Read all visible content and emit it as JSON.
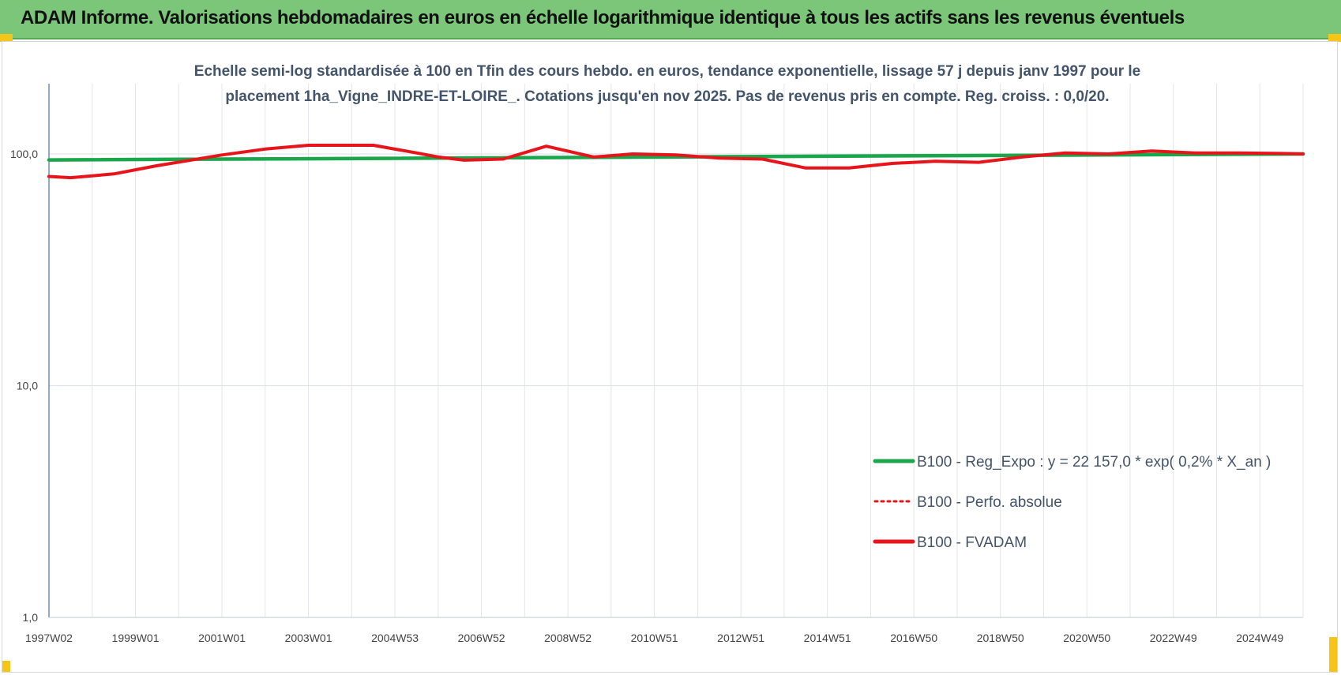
{
  "header": {
    "title": "ADAM Informe. Valorisations hebdomadaires en euros en échelle logarithmique identique à tous les actifs sans les revenus éventuels"
  },
  "chart_data": {
    "type": "line",
    "title_lines": [
      "Echelle semi-log standardisée à 100 en Tfin des cours hebdo. en euros, tendance exponentielle, lissage 57 j depuis janv 1997 pour le",
      "placement 1ha_Vigne_INDRE-ET-LOIRE_. Cotations jusqu'en nov 2025. Pas de revenus pris en compte. Reg. croiss. : 0,0/20."
    ],
    "y_scale": "log",
    "ylim": [
      1,
      200
    ],
    "y_ticks": [
      {
        "value": 1,
        "label": "1,0"
      },
      {
        "value": 10,
        "label": "10,0"
      },
      {
        "value": 100,
        "label": "100,0"
      }
    ],
    "xlim": [
      1997.0,
      2026.0
    ],
    "x_ticks": [
      {
        "value": 1997.0,
        "label": "1997W02"
      },
      {
        "value": 1999.0,
        "label": "1999W01"
      },
      {
        "value": 2001.0,
        "label": "2001W01"
      },
      {
        "value": 2003.0,
        "label": "2003W01"
      },
      {
        "value": 2005.0,
        "label": "2004W53"
      },
      {
        "value": 2007.0,
        "label": "2006W52"
      },
      {
        "value": 2009.0,
        "label": "2008W52"
      },
      {
        "value": 2011.0,
        "label": "2010W51"
      },
      {
        "value": 2013.0,
        "label": "2012W51"
      },
      {
        "value": 2015.0,
        "label": "2014W51"
      },
      {
        "value": 2017.0,
        "label": "2016W50"
      },
      {
        "value": 2019.0,
        "label": "2018W50"
      },
      {
        "value": 2021.0,
        "label": "2020W50"
      },
      {
        "value": 2023.0,
        "label": "2022W49"
      },
      {
        "value": 2025.0,
        "label": "2024W49"
      }
    ],
    "grid": true,
    "legend_position": "bottom-right",
    "series": [
      {
        "name": "B100 - Reg_Expo : y = 22 157,0 * exp( 0,2% *  X_an )",
        "color": "#1aa64a",
        "style": "solid",
        "x": [
          1997.0,
          2026.0
        ],
        "y": [
          94.2,
          100.0
        ]
      },
      {
        "name": "B100 - Perfo. absolue",
        "color": "#e8141b",
        "style": "dotted",
        "x": [],
        "y": []
      },
      {
        "name": "B100 - FVADAM",
        "color": "#e8141b",
        "style": "solid",
        "x": [
          1997.0,
          1997.5,
          1998.5,
          1999.5,
          2001.0,
          2002.0,
          2003.0,
          2004.5,
          2005.5,
          2006.0,
          2006.6,
          2007.5,
          2008.5,
          2009.6,
          2010.5,
          2011.5,
          2012.5,
          2013.5,
          2014.5,
          2015.5,
          2016.5,
          2017.5,
          2018.5,
          2019.5,
          2020.5,
          2021.5,
          2022.5,
          2023.5,
          2024.5,
          2025.5,
          2026.0
        ],
        "y": [
          80,
          79,
          82,
          89,
          99,
          105,
          109,
          109,
          101,
          97,
          94,
          95,
          108,
          97,
          100,
          99,
          96,
          95,
          87,
          87,
          91,
          93,
          92,
          97,
          101,
          100,
          103,
          101,
          101,
          100.5,
          100
        ]
      }
    ]
  }
}
